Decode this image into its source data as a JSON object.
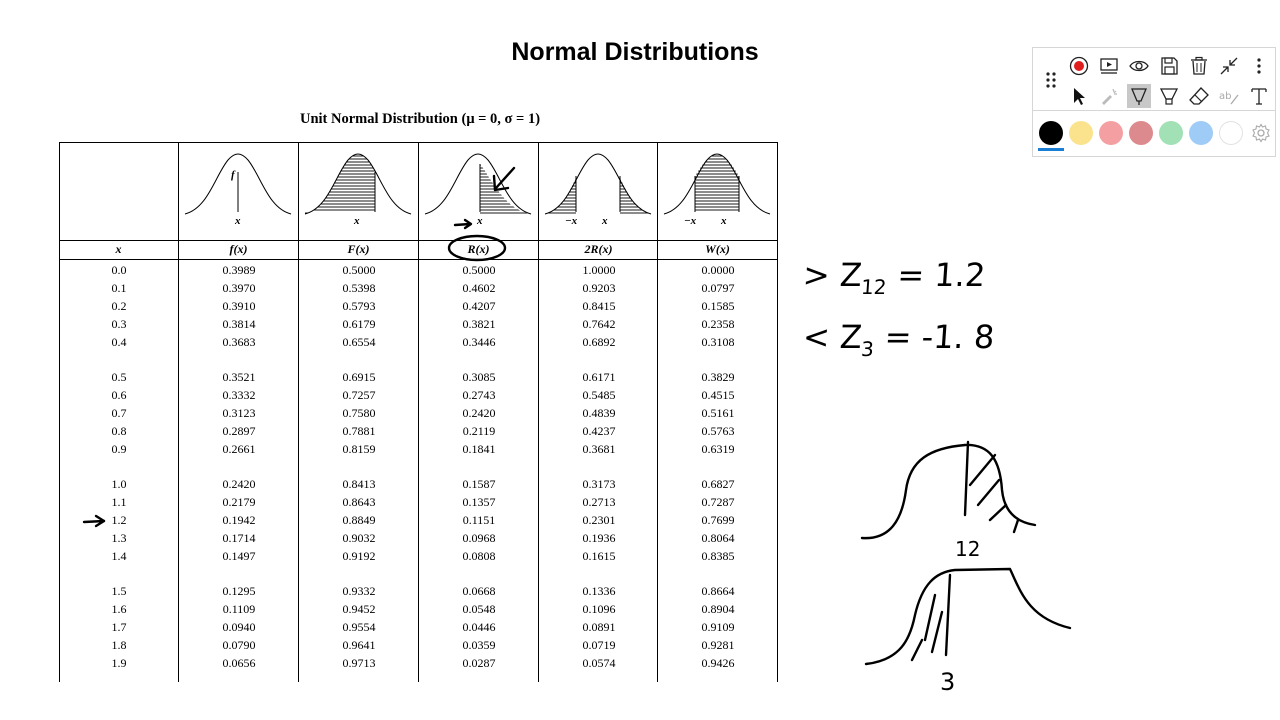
{
  "slide": {
    "title": "Normal Distributions"
  },
  "table": {
    "caption": "Unit Normal Distribution (μ = 0, σ = 1)",
    "curve_labels": {
      "f": {
        "f": "f",
        "x": "x"
      },
      "F": {
        "x": "x"
      },
      "R": {
        "x": "x"
      },
      "2R": {
        "neg": "−x",
        "x": "x"
      },
      "W": {
        "neg": "−x",
        "x": "x"
      }
    },
    "headers": [
      "x",
      "f(x)",
      "F(x)",
      "R(x)",
      "2R(x)",
      "W(x)"
    ],
    "groups": [
      [
        [
          "0.0",
          "0.3989",
          "0.5000",
          "0.5000",
          "1.0000",
          "0.0000"
        ],
        [
          "0.1",
          "0.3970",
          "0.5398",
          "0.4602",
          "0.9203",
          "0.0797"
        ],
        [
          "0.2",
          "0.3910",
          "0.5793",
          "0.4207",
          "0.8415",
          "0.1585"
        ],
        [
          "0.3",
          "0.3814",
          "0.6179",
          "0.3821",
          "0.7642",
          "0.2358"
        ],
        [
          "0.4",
          "0.3683",
          "0.6554",
          "0.3446",
          "0.6892",
          "0.3108"
        ]
      ],
      [
        [
          "0.5",
          "0.3521",
          "0.6915",
          "0.3085",
          "0.6171",
          "0.3829"
        ],
        [
          "0.6",
          "0.3332",
          "0.7257",
          "0.2743",
          "0.5485",
          "0.4515"
        ],
        [
          "0.7",
          "0.3123",
          "0.7580",
          "0.2420",
          "0.4839",
          "0.5161"
        ],
        [
          "0.8",
          "0.2897",
          "0.7881",
          "0.2119",
          "0.4237",
          "0.5763"
        ],
        [
          "0.9",
          "0.2661",
          "0.8159",
          "0.1841",
          "0.3681",
          "0.6319"
        ]
      ],
      [
        [
          "1.0",
          "0.2420",
          "0.8413",
          "0.1587",
          "0.3173",
          "0.6827"
        ],
        [
          "1.1",
          "0.2179",
          "0.8643",
          "0.1357",
          "0.2713",
          "0.7287"
        ],
        [
          "1.2",
          "0.1942",
          "0.8849",
          "0.1151",
          "0.2301",
          "0.7699"
        ],
        [
          "1.3",
          "0.1714",
          "0.9032",
          "0.0968",
          "0.1936",
          "0.8064"
        ],
        [
          "1.4",
          "0.1497",
          "0.9192",
          "0.0808",
          "0.1615",
          "0.8385"
        ]
      ],
      [
        [
          "1.5",
          "0.1295",
          "0.9332",
          "0.0668",
          "0.1336",
          "0.8664"
        ],
        [
          "1.6",
          "0.1109",
          "0.9452",
          "0.0548",
          "0.1096",
          "0.8904"
        ],
        [
          "1.7",
          "0.0940",
          "0.9554",
          "0.0446",
          "0.0891",
          "0.9109"
        ],
        [
          "1.8",
          "0.0790",
          "0.9641",
          "0.0359",
          "0.0719",
          "0.9281"
        ],
        [
          "1.9",
          "0.0656",
          "0.9713",
          "0.0287",
          "0.0574",
          "0.9426"
        ]
      ]
    ]
  },
  "annotations": {
    "line1": {
      "symbol": "> Z",
      "subscript": "12",
      "rhs": "= 1.2"
    },
    "line2": {
      "symbol": "< Z",
      "subscript": "3",
      "rhs": "= -1. 8"
    },
    "sketch1_label": "12",
    "sketch2_label": "3"
  },
  "toolbar": {
    "row1_icons": [
      "drag-handle-icon",
      "record-icon",
      "screen-present-icon",
      "eye-icon",
      "save-icon",
      "trash-icon",
      "collapse-icon",
      "more-vertical-icon"
    ],
    "row2_icons": [
      "pointer-icon",
      "laser-pointer-icon",
      "pen-icon",
      "highlighter-icon",
      "eraser-icon",
      "handwriting-to-text-icon",
      "text-icon"
    ],
    "active_tool": "pen-icon",
    "colors": [
      "#000000",
      "#fbe38e",
      "#f4a0a3",
      "#dc8a8e",
      "#a2e0b6",
      "#9fcbf7",
      "#ffffff"
    ],
    "selected_color": "#000000"
  }
}
